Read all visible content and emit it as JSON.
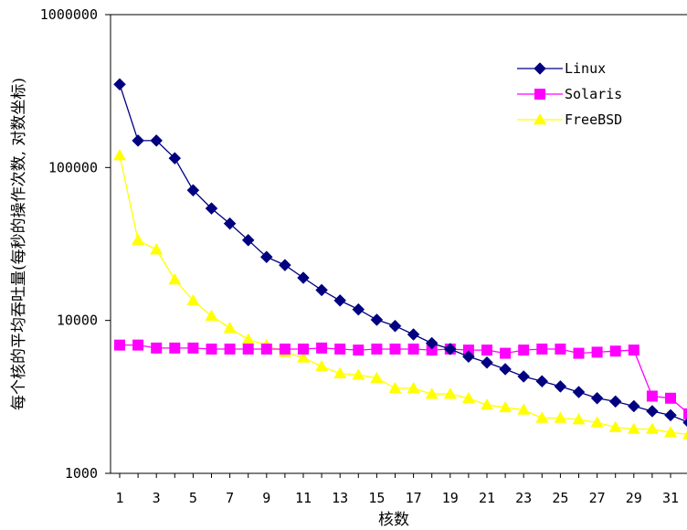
{
  "chart_data": {
    "type": "line",
    "xlabel": "核数",
    "ylabel": "每个核的平均吞吐量(每秒的操作次数, 对数坐标)",
    "y_scale": "log",
    "ylim": [
      1000,
      1000000
    ],
    "y_ticks": [
      1000,
      10000,
      100000,
      1000000
    ],
    "y_tick_labels": [
      "1000",
      "10000",
      "100000",
      "1000000"
    ],
    "x": [
      1,
      2,
      3,
      4,
      5,
      6,
      7,
      8,
      9,
      10,
      11,
      12,
      13,
      14,
      15,
      16,
      17,
      18,
      19,
      20,
      21,
      22,
      23,
      24,
      25,
      26,
      27,
      28,
      29,
      30,
      31,
      32
    ],
    "x_tick_labels": [
      "1",
      "3",
      "5",
      "7",
      "9",
      "11",
      "13",
      "15",
      "17",
      "19",
      "21",
      "23",
      "25",
      "27",
      "29",
      "31"
    ],
    "grid": false,
    "legend_position": "top-right",
    "series": [
      {
        "name": "Linux",
        "color": "#000080",
        "marker": "diamond",
        "values": [
          350000,
          150000,
          150000,
          115000,
          71000,
          54000,
          43000,
          33500,
          26000,
          23000,
          19000,
          15800,
          13500,
          11800,
          10100,
          9200,
          8100,
          7100,
          6500,
          5800,
          5300,
          4800,
          4300,
          4000,
          3700,
          3400,
          3100,
          2950,
          2750,
          2550,
          2400,
          2150
        ]
      },
      {
        "name": "Solaris",
        "color": "#ff00ff",
        "marker": "square",
        "values": [
          6900,
          6900,
          6600,
          6600,
          6600,
          6500,
          6500,
          6500,
          6500,
          6500,
          6500,
          6600,
          6500,
          6400,
          6500,
          6500,
          6500,
          6400,
          6500,
          6400,
          6400,
          6100,
          6400,
          6500,
          6500,
          6100,
          6200,
          6300,
          6400,
          3200,
          3100,
          2450
        ]
      },
      {
        "name": "FreeBSD",
        "color": "#ffff00",
        "marker": "triangle",
        "values": [
          120000,
          33500,
          29000,
          18500,
          13500,
          10700,
          8900,
          7500,
          6900,
          6200,
          5700,
          5000,
          4500,
          4400,
          4200,
          3600,
          3600,
          3300,
          3300,
          3100,
          2800,
          2700,
          2600,
          2300,
          2300,
          2250,
          2150,
          2000,
          1950,
          1950,
          1850,
          1800
        ]
      }
    ]
  }
}
